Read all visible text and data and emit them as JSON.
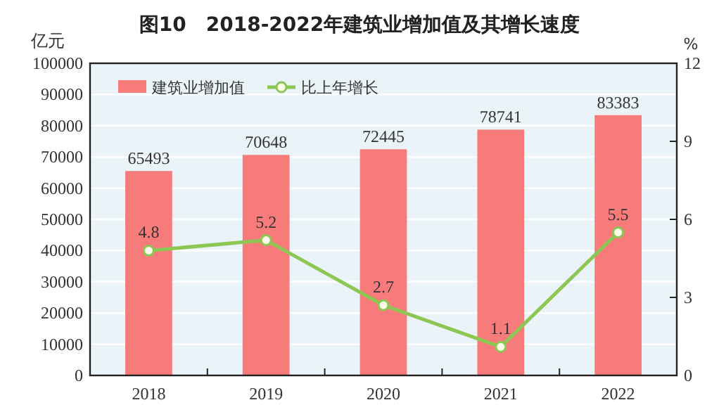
{
  "chart_data": {
    "type": "bar",
    "title": "图10　2018-2022年建筑业增加值及其增长速度",
    "categories": [
      "2018",
      "2019",
      "2020",
      "2021",
      "2022"
    ],
    "series": [
      {
        "name": "建筑业增加值",
        "color": "#f87b7b",
        "values": [
          65493,
          70648,
          72445,
          78741,
          83383
        ]
      },
      {
        "name": "比上年增长",
        "type": "line",
        "axis": "y2",
        "color": "#8cc653",
        "marker": "circle",
        "values": [
          4.8,
          5.2,
          2.7,
          1.1,
          5.5
        ]
      }
    ],
    "ylabel": "亿元",
    "y2label": "%",
    "ylim": [
      0,
      100000
    ],
    "yticks": [
      0,
      10000,
      20000,
      30000,
      40000,
      50000,
      60000,
      70000,
      80000,
      90000,
      100000
    ],
    "y2lim": [
      0,
      12
    ],
    "y2ticks": [
      0,
      3,
      6,
      9,
      12
    ],
    "grid": "y",
    "legend": "top left",
    "data_labels": true
  }
}
